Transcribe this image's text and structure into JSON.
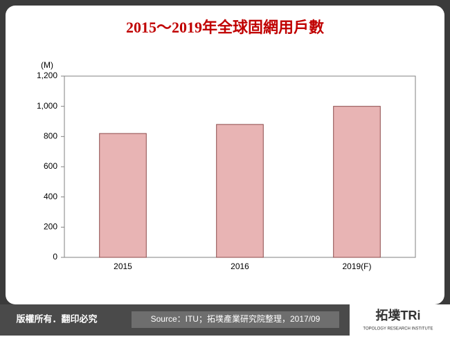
{
  "chart_data": {
    "type": "bar",
    "title": "2015～2019年全球固網用戶數",
    "y_unit": "(M)",
    "categories": [
      "2015",
      "2016",
      "2019(F)"
    ],
    "values": [
      820,
      880,
      1000
    ],
    "color": "#e8b4b4",
    "edge_color": "#8c4a4a",
    "ylim": [
      0,
      1200
    ],
    "yticks": [
      0,
      200,
      400,
      600,
      800,
      {
        "value": 1000,
        "label": "1,000"
      },
      {
        "value": 1200,
        "label": "1,200"
      }
    ],
    "grid": false
  },
  "footer": {
    "copyright": "版權所有．翻印必究",
    "source": "Source：ITU；拓墣產業研究院整理，2017/09",
    "logo": {
      "text": "拓墣TRi",
      "subtitle": "TOPOLOGY RESEARCH INSTITUTE"
    }
  }
}
